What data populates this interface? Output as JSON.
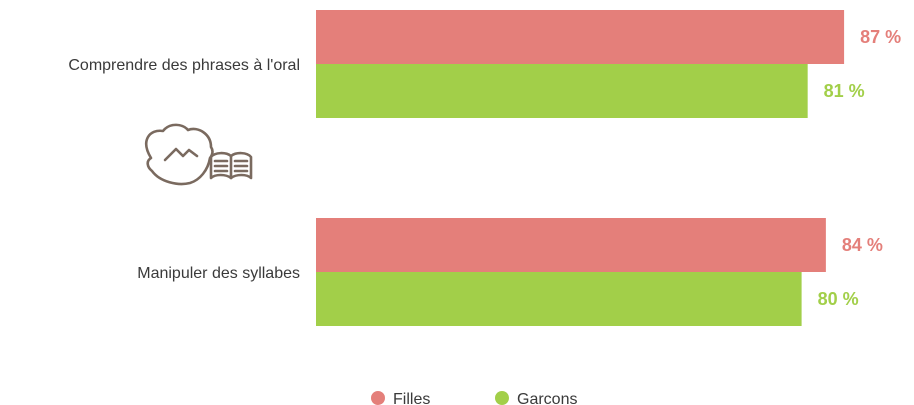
{
  "chart_data": {
    "type": "bar",
    "orientation": "horizontal",
    "categories": [
      "Comprendre des phrases à l'oral",
      "Manipuler des syllabes"
    ],
    "series": [
      {
        "name": "Filles",
        "color": "#e47f7a",
        "values": [
          87,
          84
        ],
        "value_labels": [
          "87 %",
          "84 %"
        ]
      },
      {
        "name": "Garcons",
        "color": "#a2cf49",
        "values": [
          81,
          80
        ],
        "value_labels": [
          "81 %",
          "80 %"
        ]
      }
    ],
    "xlim": [
      0,
      100
    ],
    "grid": false,
    "legend_placement": "bottom-center"
  },
  "decoration": {
    "icon": "child-reading-book-icon",
    "icon_color": "#7a6a5f"
  }
}
